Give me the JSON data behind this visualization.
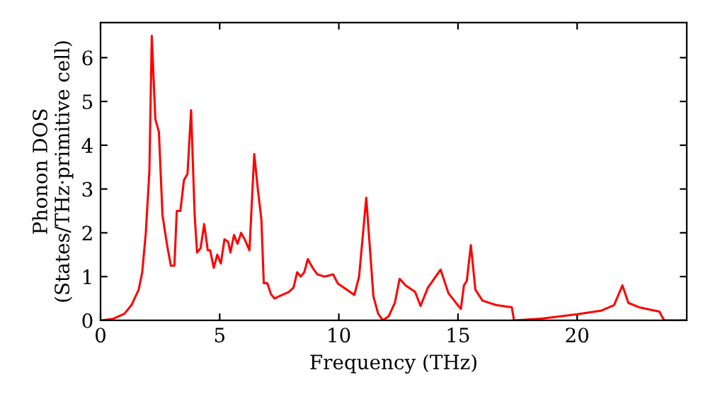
{
  "chart_data": {
    "type": "line",
    "xlabel": "Frequency (THz)",
    "ylabel": "Phonon DOS\n(States/THz·primitive cell)",
    "xlim": [
      0,
      24.6
    ],
    "ylim": [
      0,
      6.8
    ],
    "xticks": [
      0,
      5,
      10,
      15,
      20
    ],
    "yticks": [
      0,
      1,
      2,
      3,
      4,
      5,
      6
    ],
    "grid": false,
    "series": [
      {
        "color": "#ff0000",
        "x": [
          0,
          0.5,
          1,
          1.3,
          1.6,
          1.75,
          1.9,
          2.05,
          2.15,
          2.3,
          2.45,
          2.6,
          2.8,
          2.95,
          3.1,
          3.2,
          3.35,
          3.5,
          3.65,
          3.8,
          3.95,
          4.05,
          4.2,
          4.35,
          4.5,
          4.6,
          4.75,
          4.9,
          5.05,
          5.2,
          5.35,
          5.45,
          5.6,
          5.75,
          5.9,
          6.05,
          6.25,
          6.45,
          6.6,
          6.75,
          6.85,
          7.0,
          7.15,
          7.3,
          7.5,
          7.9,
          8.1,
          8.25,
          8.4,
          8.55,
          8.7,
          8.9,
          9.1,
          9.4,
          9.76,
          9.96,
          10.2,
          10.65,
          10.85,
          11.15,
          11.45,
          11.65,
          11.85,
          12.1,
          12.35,
          12.55,
          12.8,
          13.2,
          13.43,
          13.73,
          14.27,
          14.6,
          15.12,
          15.25,
          15.37,
          15.54,
          15.73,
          16.03,
          16.6,
          17.26,
          17.35,
          18.5,
          20,
          21,
          21.55,
          21.9,
          22.15,
          22.6,
          23.45,
          23.65,
          24.6
        ],
        "values": [
          0,
          0.03,
          0.15,
          0.35,
          0.7,
          1.1,
          2.0,
          3.4,
          6.5,
          4.6,
          4.3,
          2.4,
          1.7,
          1.25,
          1.25,
          2.5,
          2.5,
          3.2,
          3.35,
          4.8,
          2.4,
          1.55,
          1.65,
          2.2,
          1.6,
          1.6,
          1.2,
          1.5,
          1.3,
          1.85,
          1.8,
          1.55,
          1.95,
          1.75,
          2.0,
          1.85,
          1.6,
          3.8,
          3.0,
          2.3,
          0.85,
          0.85,
          0.6,
          0.5,
          0.55,
          0.65,
          0.75,
          1.1,
          1.0,
          1.1,
          1.4,
          1.2,
          1.05,
          1.0,
          1.05,
          0.84,
          0.75,
          0.58,
          1.0,
          2.8,
          0.55,
          0.15,
          0,
          0.1,
          0.4,
          0.95,
          0.8,
          0.65,
          0.33,
          0.74,
          1.16,
          0.62,
          0.26,
          0.8,
          0.9,
          1.72,
          0.7,
          0.45,
          0.35,
          0.3,
          0,
          0.04,
          0.14,
          0.22,
          0.35,
          0.8,
          0.4,
          0.3,
          0.2,
          0,
          0
        ]
      }
    ]
  }
}
